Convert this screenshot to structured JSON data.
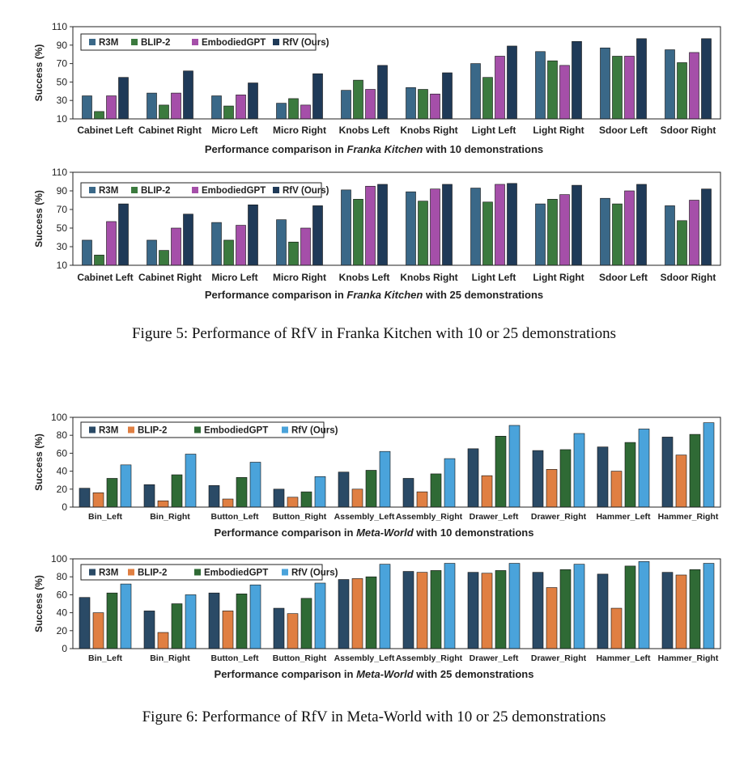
{
  "colors": {
    "r3m": "#3a6888",
    "blip2_kitchen": "#3b7a3e",
    "embodied_kitchen": "#a54fa9",
    "rfv_kitchen": "#1f3a58",
    "r3m_mw": "#2a4a66",
    "blip2_mw": "#e07f42",
    "embodied_mw": "#2f6a35",
    "rfv_mw": "#4aa3db"
  },
  "figure5": {
    "caption": "Figure 5: Performance of RfV in Franka Kitchen with 10 or 25 demonstrations"
  },
  "figure6": {
    "caption": "Figure 6: Performance of RfV in Meta-World with 10 or 25 demonstrations"
  },
  "chart_data": [
    {
      "type": "bar",
      "xlabel_pre": "Performance comparison in ",
      "xlabel_env": "Franka Kitchen",
      "xlabel_post": " with 10 demonstrations",
      "ylabel": "Success (%)",
      "ylim": [
        10,
        110
      ],
      "yticks": [
        10,
        30,
        50,
        70,
        90,
        110
      ],
      "legend_position": "top-left",
      "categories": [
        "Cabinet Left",
        "Cabinet Right",
        "Micro Left",
        "Micro Right",
        "Knobs Left",
        "Knobs Right",
        "Light Left",
        "Light Right",
        "Sdoor Left",
        "Sdoor Right"
      ],
      "series": [
        {
          "name": "R3M",
          "color": "#3a6888",
          "values": [
            35,
            38,
            35,
            27,
            41,
            44,
            70,
            83,
            87,
            85
          ]
        },
        {
          "name": "BLIP-2",
          "color": "#3b7a3e",
          "values": [
            18,
            25,
            24,
            32,
            52,
            42,
            55,
            73,
            78,
            71
          ]
        },
        {
          "name": "EmbodiedGPT",
          "color": "#a54fa9",
          "values": [
            35,
            38,
            36,
            25,
            42,
            37,
            78,
            68,
            78,
            82
          ]
        },
        {
          "name": "RfV (Ours)",
          "color": "#1f3a58",
          "values": [
            55,
            62,
            49,
            59,
            68,
            60,
            89,
            94,
            97,
            97
          ]
        }
      ]
    },
    {
      "type": "bar",
      "xlabel_pre": "Performance comparison in ",
      "xlabel_env": "Franka Kitchen",
      "xlabel_post": " with 25 demonstrations",
      "ylabel": "Success (%)",
      "ylim": [
        10,
        110
      ],
      "yticks": [
        10,
        30,
        50,
        70,
        90,
        110
      ],
      "legend_position": "top-left",
      "categories": [
        "Cabinet Left",
        "Cabinet Right",
        "Micro Left",
        "Micro Right",
        "Knobs Left",
        "Knobs Right",
        "Light Left",
        "Light Right",
        "Sdoor Left",
        "Sdoor Right"
      ],
      "series": [
        {
          "name": "R3M",
          "color": "#3a6888",
          "values": [
            37,
            37,
            56,
            59,
            91,
            89,
            93,
            76,
            82,
            74
          ]
        },
        {
          "name": "BLIP-2",
          "color": "#3b7a3e",
          "values": [
            21,
            26,
            37,
            35,
            81,
            79,
            78,
            81,
            76,
            58
          ]
        },
        {
          "name": "EmbodiedGPT",
          "color": "#a54fa9",
          "values": [
            57,
            50,
            53,
            50,
            95,
            92,
            97,
            86,
            90,
            80
          ]
        },
        {
          "name": "RfV (Ours)",
          "color": "#1f3a58",
          "values": [
            76,
            65,
            75,
            74,
            97,
            97,
            98,
            96,
            97,
            92
          ]
        }
      ]
    },
    {
      "type": "bar",
      "xlabel_pre": "Performance comparison in ",
      "xlabel_env": "Meta-World",
      "xlabel_post": " with 10 demonstrations",
      "ylabel": "Success (%)",
      "ylim": [
        0,
        100
      ],
      "yticks": [
        0,
        20,
        40,
        60,
        80,
        100
      ],
      "legend_position": "top-left",
      "categories": [
        "Bin_Left",
        "Bin_Right",
        "Button_Left",
        "Button_Right",
        "Assembly_Left",
        "Assembly_Right",
        "Drawer_Left",
        "Drawer_Right",
        "Hammer_Left",
        "Hammer_Right"
      ],
      "series": [
        {
          "name": "R3M",
          "color": "#2a4a66",
          "values": [
            21,
            25,
            24,
            20,
            39,
            32,
            65,
            63,
            67,
            78
          ]
        },
        {
          "name": "BLIP-2",
          "color": "#e07f42",
          "values": [
            16,
            7,
            9,
            11,
            20,
            17,
            35,
            42,
            40,
            58
          ]
        },
        {
          "name": "EmbodiedGPT",
          "color": "#2f6a35",
          "values": [
            32,
            36,
            33,
            17,
            41,
            37,
            79,
            64,
            72,
            81
          ]
        },
        {
          "name": "RfV (Ours)",
          "color": "#4aa3db",
          "values": [
            47,
            59,
            50,
            34,
            62,
            54,
            91,
            82,
            87,
            94
          ]
        }
      ]
    },
    {
      "type": "bar",
      "xlabel_pre": "Performance comparison in ",
      "xlabel_env": "Meta-World",
      "xlabel_post": " with 25 demonstrations",
      "ylabel": "Success (%)",
      "ylim": [
        0,
        100
      ],
      "yticks": [
        0,
        20,
        40,
        60,
        80,
        100
      ],
      "legend_position": "top-left",
      "categories": [
        "Bin_Left",
        "Bin_Right",
        "Button_Left",
        "Button_Right",
        "Assembly_Left",
        "Assembly_Right",
        "Drawer_Left",
        "Drawer_Right",
        "Hammer_Left",
        "Hammer_Right"
      ],
      "series": [
        {
          "name": "R3M",
          "color": "#2a4a66",
          "values": [
            57,
            42,
            62,
            45,
            77,
            86,
            85,
            85,
            83,
            85
          ]
        },
        {
          "name": "BLIP-2",
          "color": "#e07f42",
          "values": [
            40,
            18,
            42,
            39,
            78,
            85,
            84,
            68,
            45,
            82
          ]
        },
        {
          "name": "EmbodiedGPT",
          "color": "#2f6a35",
          "values": [
            62,
            50,
            61,
            56,
            80,
            87,
            87,
            88,
            92,
            88
          ]
        },
        {
          "name": "RfV (Ours)",
          "color": "#4aa3db",
          "values": [
            72,
            60,
            71,
            73,
            94,
            95,
            95,
            94,
            97,
            95
          ]
        }
      ]
    }
  ]
}
